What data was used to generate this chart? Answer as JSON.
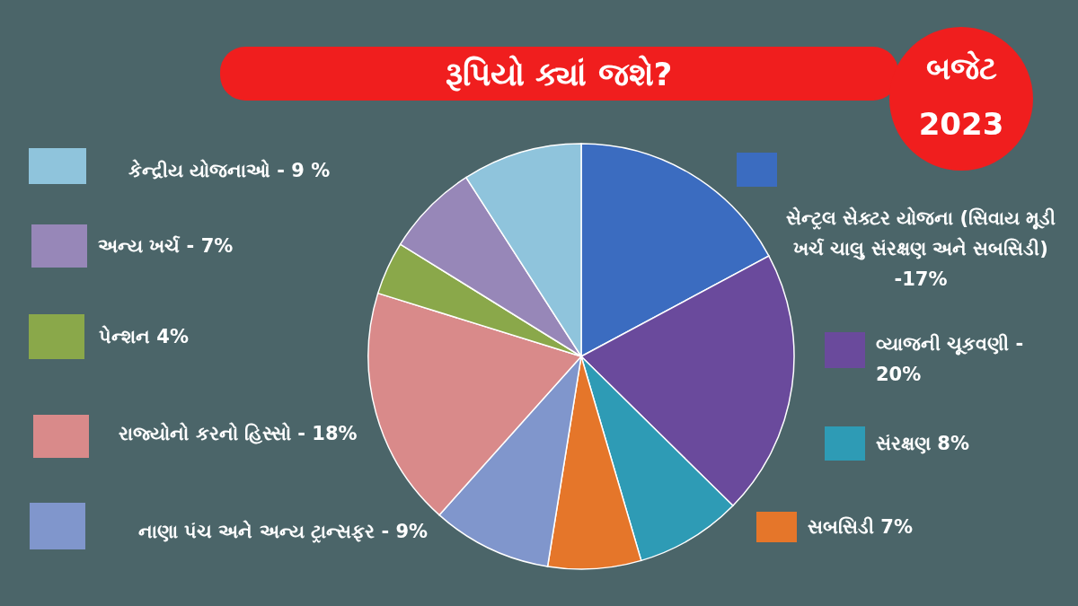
{
  "chart_data": {
    "type": "pie",
    "title": "રૂપિયો ક્યાં જશે?",
    "categories": [
      "સેન્ટ્રલ સેક્ટર યોજના (સિવાય મૂડી ખર્ચ ચાલુ સંરક્ષણ અને સબસિડી) -17%",
      "વ્યાજની ચૂકવણી - 20%",
      "સંરક્ષણ 8%",
      "સબસિડી 7%",
      "નાણા પંચ અને અન્ય ટ્રાન્સફર - 9%",
      "રાજ્યોનો કરનો હિસ્સો - 18%",
      "પેન્શન 4%",
      "અન્ય ખર્ચ - 7%",
      "કેન્દ્રીય યોજનાઓ - 9 %"
    ],
    "values": [
      17,
      20,
      8,
      7,
      9,
      18,
      4,
      7,
      9
    ],
    "colors": [
      "#3b6cc0",
      "#6a4a9c",
      "#2e9bb5",
      "#e5762a",
      "#8096cc",
      "#d98a8a",
      "#8aa84a",
      "#9787b8",
      "#8fc4dc"
    ],
    "annotations": [
      "બજેટ 2023"
    ],
    "legend": "left"
  }
}
